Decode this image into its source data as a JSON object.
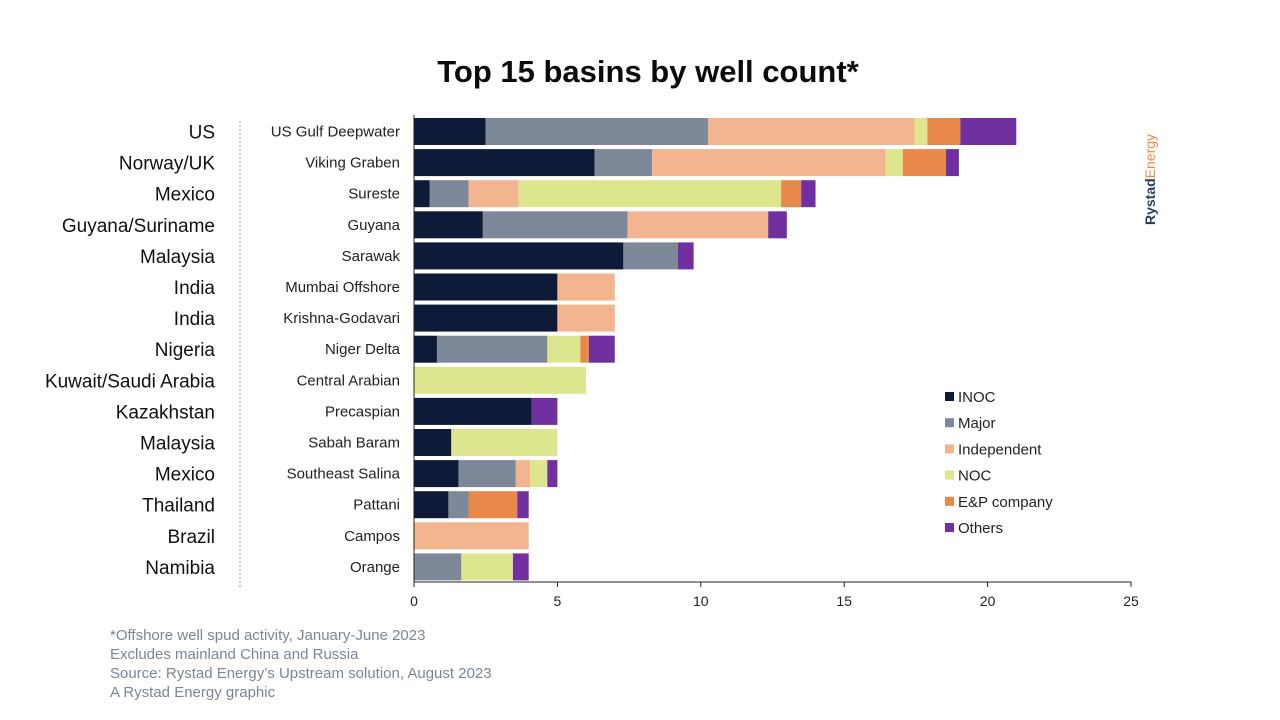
{
  "chart_data": {
    "type": "bar",
    "orientation": "horizontal",
    "stacked": true,
    "title": "Top 15 basins by well count*",
    "countries": [
      "US",
      "Norway/UK",
      "Mexico",
      "Guyana/Suriname",
      "Malaysia",
      "India",
      "India",
      "Nigeria",
      "Kuwait/Saudi Arabia",
      "Kazakhstan",
      "Malaysia",
      "Mexico",
      "Thailand",
      "Brazil",
      "Namibia"
    ],
    "categories": [
      "US Gulf Deepwater",
      "Viking Graben",
      "Sureste",
      "Guyana",
      "Sarawak",
      "Mumbai Offshore",
      "Krishna-Godavari",
      "Niger Delta",
      "Central Arabian",
      "Precaspian",
      "Sabah Baram",
      "Southeast Salina",
      "Pattani",
      "Campos",
      "Orange"
    ],
    "series": [
      {
        "name": "INOC",
        "color": "#0d1b38",
        "values": [
          2.5,
          6.3,
          0.55,
          2.4,
          7.3,
          5.0,
          5.0,
          0.8,
          0,
          4.1,
          1.3,
          1.55,
          1.2,
          0,
          0
        ]
      },
      {
        "name": "Major",
        "color": "#7d8899",
        "values": [
          7.75,
          2.0,
          1.35,
          5.05,
          1.9,
          0,
          0,
          3.85,
          0,
          0,
          0,
          2.0,
          0.7,
          0,
          1.65
        ]
      },
      {
        "name": "Independent",
        "color": "#f3b58f",
        "values": [
          7.2,
          8.15,
          1.75,
          4.9,
          0,
          2.0,
          2.0,
          0,
          0,
          0,
          0,
          0.5,
          0,
          4.0,
          0
        ]
      },
      {
        "name": "NOC",
        "color": "#dde58f",
        "values": [
          0.45,
          0.6,
          9.15,
          0,
          0,
          0,
          0,
          1.15,
          6.0,
          0,
          3.7,
          0.6,
          0,
          0,
          1.8
        ]
      },
      {
        "name": "E&P company",
        "color": "#e8884a",
        "values": [
          1.15,
          1.5,
          0.7,
          0,
          0,
          0,
          0,
          0.3,
          0,
          0,
          0,
          0,
          1.7,
          0,
          0
        ]
      },
      {
        "name": "Others",
        "color": "#7030a0",
        "values": [
          1.95,
          0.45,
          0.5,
          0.65,
          0.55,
          0,
          0,
          0.9,
          0,
          0.9,
          0,
          0.35,
          0.4,
          0,
          0.55
        ]
      }
    ],
    "xlim": [
      0,
      25
    ],
    "xticks": [
      0,
      5,
      10,
      15,
      20,
      25
    ],
    "grid": false,
    "legend_position": "right"
  },
  "footnotes": [
    "*Offshore well spud activity, January-June 2023",
    "Excludes mainland China and Russia",
    "Source: Rystad Energy’s Upstream solution, August 2023",
    "A Rystad Energy graphic"
  ],
  "brand": {
    "part1": "Rystad",
    "part2": "Energy"
  }
}
